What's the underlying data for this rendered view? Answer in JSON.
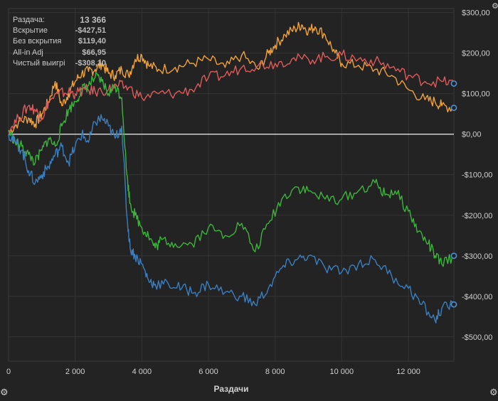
{
  "stats": {
    "hands_label": "Раздача:",
    "hands_value": "13 366",
    "showdown_label": "Вскрытие",
    "showdown_value": "-$427,51",
    "nonshowdown_label": "Без вскрытия",
    "nonshowdown_value": "$119,40",
    "allin_label": "All-in Adj",
    "allin_value": "$66,95",
    "net_label": "Чистый выигрі",
    "net_value": "-$308,10"
  },
  "icons": {
    "settings_bottom": "gear-icon",
    "settings_top": "gear-icon",
    "settings_right": "gear-icon"
  },
  "chart_data": {
    "type": "line",
    "xlabel": "Раздачи",
    "ylabel": "",
    "xlim": [
      0,
      13366
    ],
    "ylim": [
      -560,
      310
    ],
    "x_ticks": [
      0,
      2000,
      4000,
      6000,
      8000,
      10000,
      12000
    ],
    "x_tick_labels": [
      "0",
      "2 000",
      "4 000",
      "6 000",
      "8 000",
      "10 000",
      "12 000"
    ],
    "y_ticks": [
      300,
      200,
      100,
      0,
      -100,
      -200,
      -300,
      -400,
      -500
    ],
    "y_tick_labels": [
      "$300,00",
      "$200,00",
      "$100,00",
      "$0,00",
      "-$100,00",
      "-$200,00",
      "-$300,00",
      "-$400,00",
      "-$500,00"
    ],
    "grid": true,
    "zero_line": true,
    "series": [
      {
        "color": "#f0a23c",
        "x": [
          0,
          300,
          600,
          800,
          1000,
          1200,
          1400,
          1600,
          1800,
          2000,
          2200,
          2400,
          2600,
          2800,
          3000,
          3200,
          3400,
          3600,
          3800,
          4000,
          4200,
          4500,
          5000,
          5500,
          6000,
          6500,
          7000,
          7500,
          7800,
          8000,
          8300,
          8600,
          8800,
          9000,
          9200,
          9500,
          9800,
          10000,
          10500,
          11000,
          11500,
          12000,
          12500,
          12800,
          13000,
          13366
        ],
        "y": [
          5,
          30,
          40,
          25,
          50,
          80,
          130,
          70,
          100,
          130,
          150,
          155,
          160,
          175,
          150,
          145,
          160,
          145,
          185,
          195,
          170,
          160,
          165,
          175,
          185,
          165,
          195,
          160,
          200,
          220,
          245,
          260,
          270,
          255,
          265,
          245,
          200,
          175,
          170,
          160,
          145,
          110,
          85,
          80,
          70,
          65
        ]
      },
      {
        "color": "#e05a5a",
        "x": [
          0,
          300,
          600,
          800,
          1000,
          1200,
          1500,
          1800,
          2000,
          2300,
          2600,
          3000,
          3300,
          3600,
          4000,
          4500,
          5000,
          5500,
          6000,
          6500,
          7000,
          7500,
          8000,
          8500,
          9000,
          9500,
          10000,
          10500,
          11000,
          11500,
          12000,
          12500,
          13000,
          13366
        ],
        "y": [
          10,
          40,
          70,
          60,
          40,
          80,
          100,
          105,
          100,
          110,
          105,
          110,
          120,
          115,
          90,
          100,
          100,
          110,
          140,
          145,
          165,
          170,
          175,
          185,
          185,
          190,
          195,
          185,
          180,
          165,
          145,
          130,
          130,
          125
        ]
      },
      {
        "color": "#3cb43c",
        "x": [
          0,
          200,
          400,
          600,
          800,
          1000,
          1200,
          1400,
          1600,
          1800,
          2000,
          2200,
          2400,
          2600,
          2800,
          3000,
          3200,
          3400,
          3550,
          3650,
          3800,
          4000,
          4200,
          4400,
          4600,
          5000,
          5500,
          6000,
          6500,
          7000,
          7400,
          7800,
          8200,
          8600,
          9000,
          9500,
          10000,
          10500,
          11000,
          11300,
          11600,
          12000,
          12300,
          12600,
          12800,
          13000,
          13366
        ],
        "y": [
          10,
          -20,
          -30,
          -50,
          -70,
          -40,
          -10,
          -30,
          20,
          60,
          80,
          110,
          120,
          140,
          130,
          100,
          120,
          90,
          -100,
          -170,
          -200,
          -230,
          -250,
          -280,
          -260,
          -270,
          -270,
          -230,
          -250,
          -220,
          -290,
          -220,
          -160,
          -130,
          -140,
          -160,
          -160,
          -140,
          -120,
          -150,
          -140,
          -190,
          -240,
          -270,
          -300,
          -320,
          -300
        ]
      },
      {
        "color": "#3a7fc1",
        "x": [
          0,
          200,
          400,
          600,
          800,
          1000,
          1200,
          1400,
          1600,
          1800,
          2000,
          2200,
          2400,
          2600,
          2800,
          3000,
          3200,
          3400,
          3550,
          3650,
          3800,
          4000,
          4200,
          4400,
          4800,
          5200,
          5600,
          6000,
          6500,
          7000,
          7400,
          7800,
          8200,
          8600,
          9000,
          9500,
          10000,
          10500,
          11000,
          11500,
          12000,
          12400,
          12800,
          13000,
          13366
        ],
        "y": [
          0,
          -20,
          -40,
          -90,
          -120,
          -100,
          -80,
          -50,
          -30,
          -70,
          -30,
          0,
          -20,
          30,
          40,
          20,
          -10,
          20,
          -200,
          -280,
          -300,
          -320,
          -360,
          -370,
          -370,
          -380,
          -390,
          -370,
          -390,
          -400,
          -420,
          -380,
          -330,
          -310,
          -300,
          -330,
          -340,
          -320,
          -310,
          -350,
          -380,
          -420,
          -460,
          -430,
          -420
        ]
      }
    ]
  }
}
